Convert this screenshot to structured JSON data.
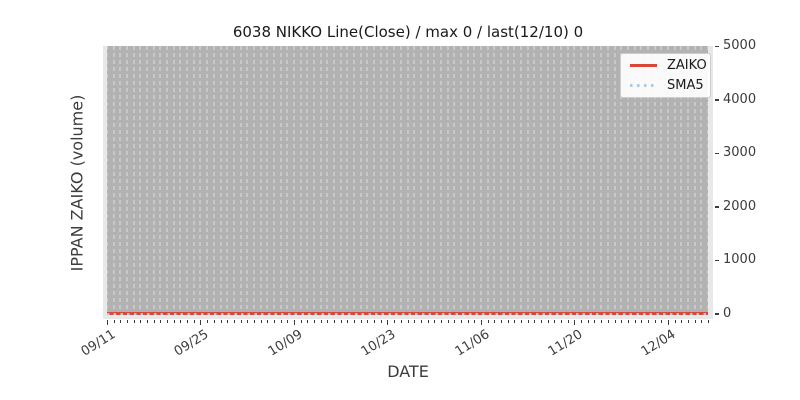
{
  "figure": {
    "background": "#ffffff",
    "plot_bg": "#e8e8e8",
    "band_color": "#b2b2b2",
    "grid_dash_color": "#c8c8c8",
    "tick_color": "#3c3c3c"
  },
  "chart_data": {
    "type": "line",
    "title": "6038 NIKKO Line(Close) / max 0 / last(12/10) 0",
    "xlabel": "DATE",
    "ylabel": "IPPAN ZAIKO (volume)",
    "ylim": [
      0,
      5000
    ],
    "yticks": [
      0,
      1000,
      2000,
      3000,
      4000,
      5000
    ],
    "yaxis_side": "right",
    "xticks": [
      "09/11",
      "09/25",
      "10/09",
      "10/23",
      "11/06",
      "11/20",
      "12/04"
    ],
    "x_days_total": 91,
    "x_major_interval_days": 14,
    "grid": "vertical dashed gridline per day over gray band",
    "legend": {
      "position": "upper right",
      "entries": [
        {
          "label": "ZAIKO",
          "line_style": "solid",
          "color": "#d94836"
        },
        {
          "label": "SMA5",
          "line_style": "dotted",
          "color": "#a9cbe3"
        }
      ]
    },
    "series": [
      {
        "name": "ZAIKO",
        "style": "solid",
        "color": "#d94836",
        "constant_value": 0,
        "n_points": 91
      },
      {
        "name": "SMA5",
        "style": "dotted",
        "color": "#a9cbe3",
        "constant_value": 0,
        "n_points": 91
      }
    ],
    "stats": {
      "max": 0,
      "last_date": "12/10",
      "last_value": 0
    }
  }
}
